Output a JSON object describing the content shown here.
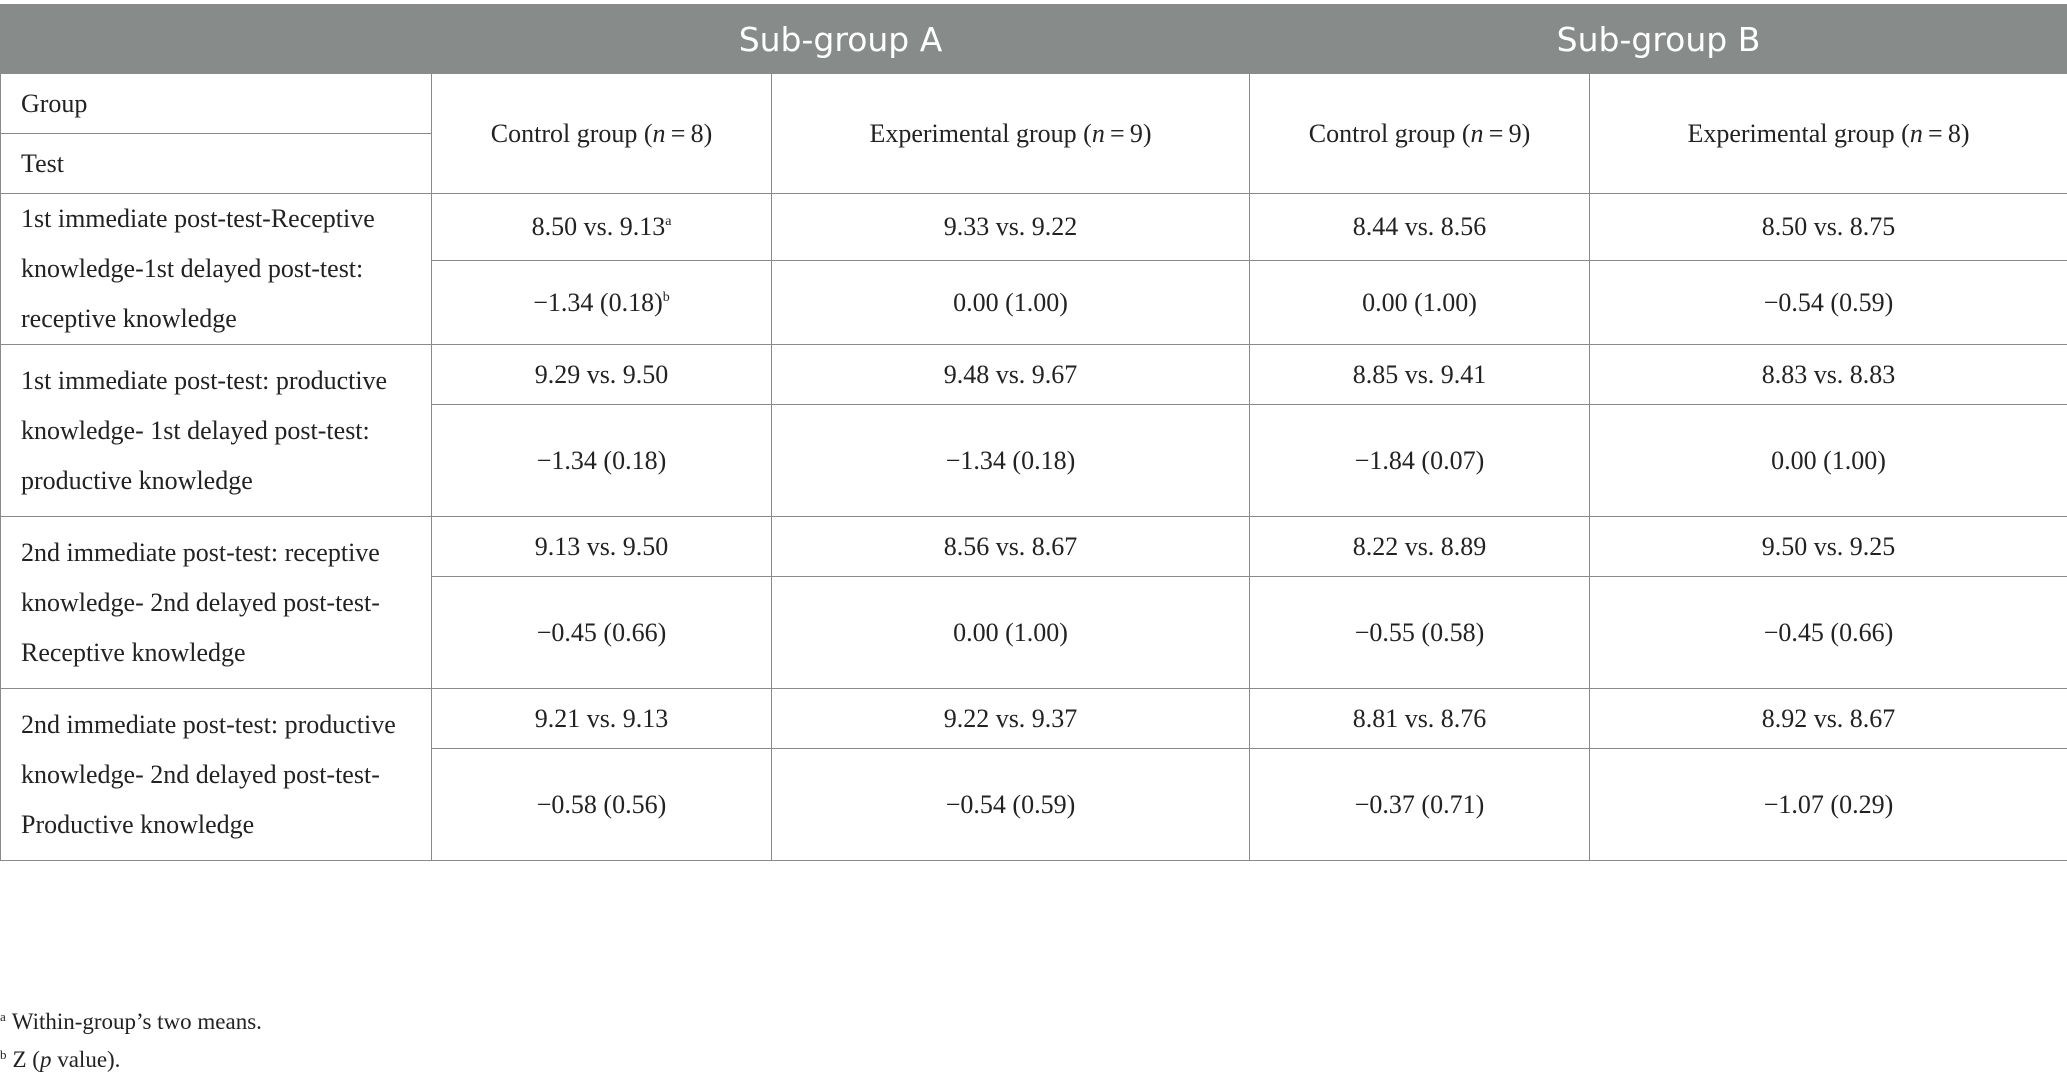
{
  "header": {
    "subgroup_a": "Sub-group A",
    "subgroup_b": "Sub-group B"
  },
  "row_labels": {
    "group": "Group",
    "test": "Test"
  },
  "columns": [
    {
      "label": "Control group (",
      "n_var": "n",
      "n_value": " = 8)"
    },
    {
      "label": "Experimental group (",
      "n_var": "n",
      "n_value": " = 9)"
    },
    {
      "label": "Control group (",
      "n_var": "n",
      "n_value": " = 9)"
    },
    {
      "label": "Experimental group (",
      "n_var": "n",
      "n_value": " = 8)"
    }
  ],
  "rows": [
    {
      "test": "1st immediate post-test-Receptive knowledge-1st delayed post-test: receptive knowledge",
      "means": [
        "8.50 vs. 9.13",
        "9.33 vs. 9.22",
        "8.44 vs. 8.56",
        "8.50 vs. 8.75"
      ],
      "z": [
        "−1.34 (0.18)",
        "0.00 (1.00)",
        "0.00 (1.00)",
        "−0.54 (0.59)"
      ]
    },
    {
      "test": "1st immediate post-test: productive knowledge- 1st delayed post-test: productive knowledge",
      "means": [
        "9.29 vs. 9.50",
        "9.48 vs. 9.67",
        "8.85 vs. 9.41",
        "8.83 vs. 8.83"
      ],
      "z": [
        "−1.34 (0.18)",
        "−1.34 (0.18)",
        "−1.84 (0.07)",
        "0.00 (1.00)"
      ]
    },
    {
      "test": "2nd immediate post-test: receptive knowledge- 2nd delayed post-test-Receptive knowledge",
      "means": [
        "9.13 vs. 9.50",
        "8.56 vs. 8.67",
        "8.22 vs. 8.89",
        "9.50 vs. 9.25"
      ],
      "z": [
        "−0.45 (0.66)",
        "0.00 (1.00)",
        "−0.55 (0.58)",
        "−0.45 (0.66)"
      ]
    },
    {
      "test": "2nd immediate post-test: productive knowledge- 2nd delayed post-test-Productive knowledge",
      "means": [
        "9.21 vs. 9.13",
        "9.22 vs. 9.37",
        "8.81 vs. 8.76",
        "8.92 vs. 8.67"
      ],
      "z": [
        "−0.58 (0.56)",
        "−0.54 (0.59)",
        "−0.37 (0.71)",
        "−1.07 (0.29)"
      ]
    }
  ],
  "marks": {
    "a": "a",
    "b": "b"
  },
  "footnotes": {
    "a_text": "Within-group’s two means.",
    "b_text_pre": "Z (",
    "b_text_var": "p",
    "b_text_post": " value)."
  }
}
